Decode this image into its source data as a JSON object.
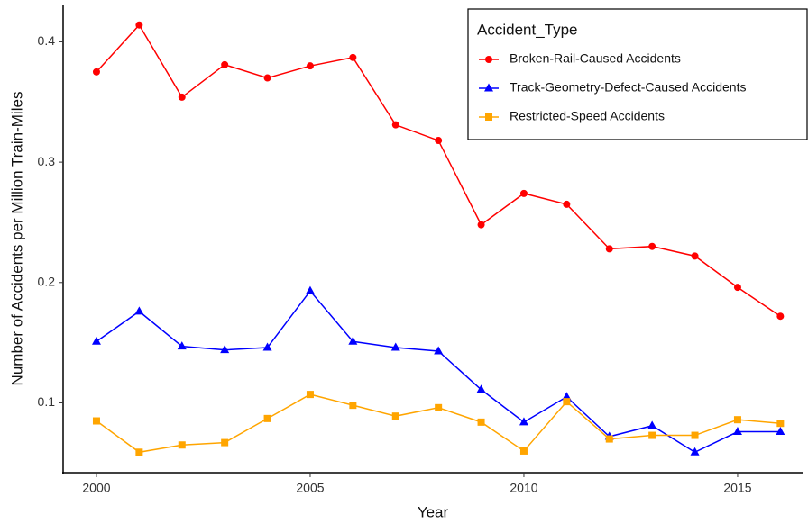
{
  "chart_data": {
    "type": "line",
    "x_label": "Year",
    "y_label": "Number of Accidents per Million Train-Miles",
    "x": [
      2000,
      2001,
      2002,
      2003,
      2004,
      2005,
      2006,
      2007,
      2008,
      2009,
      2010,
      2011,
      2012,
      2013,
      2014,
      2015,
      2016
    ],
    "series": [
      {
        "name": "Broken-Rail-Caused Accidents",
        "color": "#ff0000",
        "marker": "circle",
        "values": [
          0.375,
          0.414,
          0.354,
          0.381,
          0.37,
          0.38,
          0.387,
          0.331,
          0.318,
          0.248,
          0.274,
          0.265,
          0.228,
          0.23,
          0.222,
          0.196,
          0.172
        ]
      },
      {
        "name": "Track-Geometry-Defect-Caused Accidents",
        "color": "#0000ff",
        "marker": "triangle",
        "values": [
          0.151,
          0.176,
          0.147,
          0.144,
          0.146,
          0.193,
          0.151,
          0.146,
          0.143,
          0.111,
          0.084,
          0.105,
          0.072,
          0.081,
          0.059,
          0.076,
          0.076
        ]
      },
      {
        "name": "Restricted-Speed Accidents",
        "color": "#ffa500",
        "marker": "square",
        "values": [
          0.085,
          0.059,
          0.065,
          0.067,
          0.087,
          0.107,
          0.098,
          0.089,
          0.096,
          0.084,
          0.06,
          0.101,
          0.07,
          0.073,
          0.073,
          0.086,
          0.083
        ]
      }
    ],
    "legend_title": "Accident_Type",
    "legend_position": "top right",
    "grid": false,
    "xlim": [
      1999.22,
      2016.52
    ],
    "xticks": [
      2000,
      2005,
      2010,
      2015
    ],
    "ylim": [
      0.042,
      0.431
    ],
    "yticks": [
      0.1,
      0.2,
      0.3,
      0.4
    ]
  }
}
